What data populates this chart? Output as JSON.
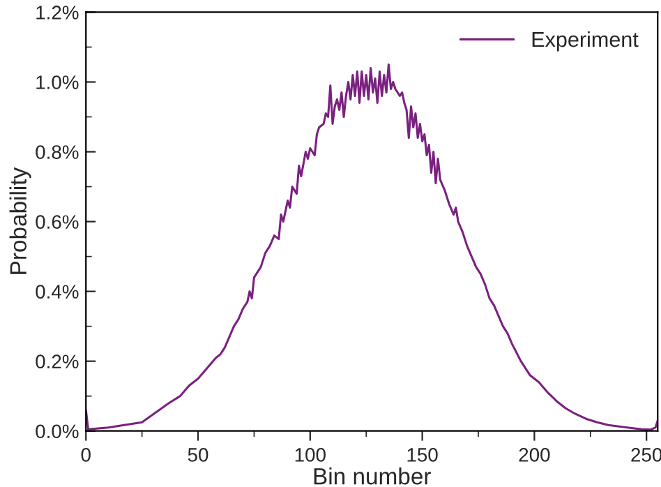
{
  "chart_data": {
    "type": "line",
    "xlabel": "Bin number",
    "ylabel": "Probability",
    "xlim": [
      0,
      255
    ],
    "xticks": [
      0,
      50,
      100,
      150,
      200,
      250
    ],
    "ylim": [
      0,
      1.2
    ],
    "yticks": [
      {
        "value": 0,
        "label": "0.0%"
      },
      {
        "value": 0.2,
        "label": "0.2%"
      },
      {
        "value": 0.4,
        "label": "0.4%"
      },
      {
        "value": 0.6,
        "label": "0.6%"
      },
      {
        "value": 0.8,
        "label": "0.8%"
      },
      {
        "value": 1.0,
        "label": "1.0%"
      },
      {
        "value": 1.2,
        "label": "1.2%"
      }
    ],
    "legend": "top right",
    "grid": false,
    "series": [
      {
        "name": "Experiment",
        "color": "#7a2180",
        "x": [
          0,
          1,
          10,
          25,
          37,
          42,
          46,
          50,
          54,
          58,
          60,
          62,
          64,
          66,
          68,
          70,
          72,
          73,
          74,
          75,
          76,
          78,
          80,
          82,
          84,
          86,
          87,
          88,
          90,
          91,
          92,
          94,
          95,
          96,
          98,
          99,
          100,
          102,
          103,
          104,
          106,
          107,
          108,
          109,
          110,
          111,
          112,
          113,
          114,
          115,
          116,
          117,
          118,
          119,
          120,
          121,
          122,
          123,
          124,
          125,
          126,
          127,
          128,
          129,
          130,
          131,
          132,
          133,
          134,
          135,
          136,
          137,
          138,
          140,
          141,
          142,
          143,
          144,
          145,
          146,
          147,
          148,
          149,
          150,
          151,
          152,
          153,
          154,
          155,
          156,
          157,
          158,
          160,
          161,
          162,
          164,
          165,
          166,
          168,
          169,
          170,
          172,
          174,
          176,
          178,
          180,
          182,
          184,
          186,
          188,
          190,
          194,
          198,
          202,
          206,
          210,
          214,
          218,
          223,
          228,
          233,
          239,
          244,
          248,
          252,
          254,
          255
        ],
        "values": [
          0.06,
          0.005,
          0.01,
          0.025,
          0.08,
          0.1,
          0.13,
          0.15,
          0.18,
          0.21,
          0.22,
          0.24,
          0.27,
          0.3,
          0.32,
          0.35,
          0.37,
          0.4,
          0.38,
          0.44,
          0.45,
          0.47,
          0.51,
          0.53,
          0.56,
          0.55,
          0.62,
          0.6,
          0.66,
          0.64,
          0.7,
          0.68,
          0.76,
          0.73,
          0.8,
          0.78,
          0.81,
          0.79,
          0.85,
          0.87,
          0.88,
          0.91,
          0.9,
          0.99,
          0.88,
          0.93,
          0.95,
          0.92,
          0.97,
          0.9,
          0.96,
          1.0,
          0.95,
          1.02,
          0.96,
          1.03,
          0.94,
          1.03,
          0.96,
          1.02,
          0.95,
          1.04,
          0.97,
          1.01,
          0.94,
          1.03,
          0.96,
          1.02,
          0.97,
          1.05,
          0.98,
          1.0,
          0.98,
          0.96,
          0.97,
          0.94,
          0.92,
          0.84,
          0.93,
          0.87,
          0.91,
          0.84,
          0.88,
          0.83,
          0.85,
          0.79,
          0.82,
          0.74,
          0.8,
          0.71,
          0.78,
          0.72,
          0.69,
          0.67,
          0.65,
          0.62,
          0.64,
          0.6,
          0.57,
          0.55,
          0.53,
          0.5,
          0.47,
          0.45,
          0.42,
          0.38,
          0.36,
          0.33,
          0.3,
          0.28,
          0.25,
          0.2,
          0.16,
          0.14,
          0.11,
          0.085,
          0.065,
          0.05,
          0.035,
          0.025,
          0.017,
          0.012,
          0.008,
          0.005,
          0.004,
          0.01,
          0.03
        ]
      }
    ]
  }
}
